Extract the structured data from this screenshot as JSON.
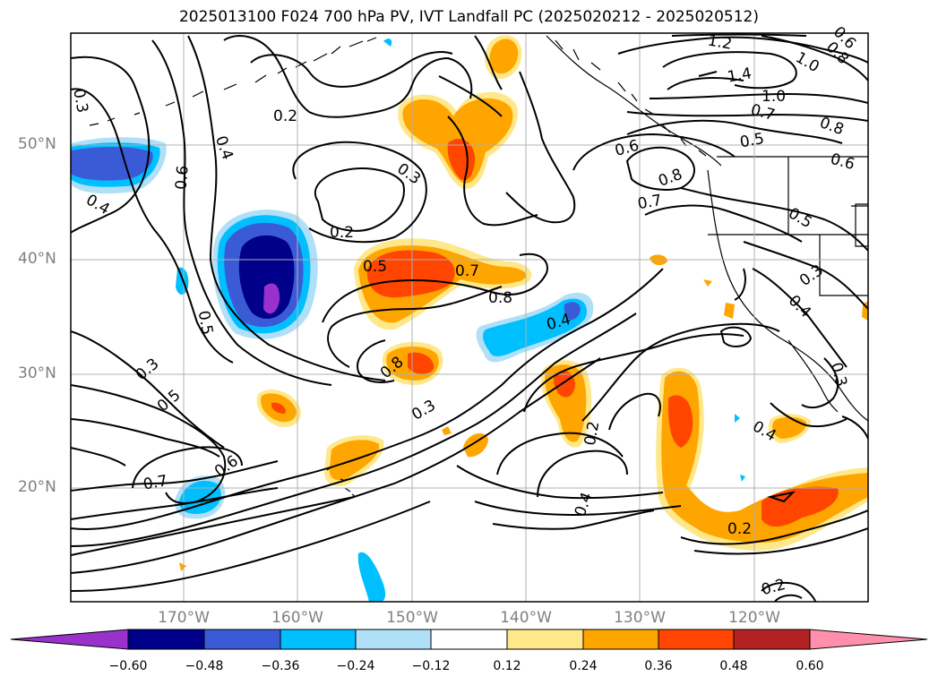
{
  "title": "2025013100 F024 700 hPa PV, IVT Landfall PC (2025020212 - 2025020512)",
  "lat_labels": [
    "50°N",
    "40°N",
    "30°N",
    "20°N"
  ],
  "lon_labels": [
    "170°W",
    "160°W",
    "150°W",
    "140°W",
    "130°W",
    "120°W"
  ],
  "contour_labels": [
    "0.3",
    "0.2",
    "0.4",
    "0.6",
    "0.2",
    "0.3",
    "0.5",
    "0.7",
    "0.8",
    "0.4",
    "0.6",
    "0.8",
    "0.7",
    "0.5",
    "1.0",
    "0.7",
    "0.8",
    "0.6",
    "1.2",
    "1.4",
    "1.0",
    "0.8",
    "0.6",
    "0.3",
    "0.4",
    "0.3",
    "0.5",
    "0.7",
    "0.6",
    "0.8",
    "0.3",
    "0.2",
    "0.4",
    "0.4",
    "0.2",
    "0.2",
    "0.3",
    "0.4"
  ],
  "colorbar": {
    "tick_labels": [
      "−0.60",
      "−0.48",
      "−0.36",
      "−0.24",
      "−0.12",
      "0.12",
      "0.24",
      "0.36",
      "0.48",
      "0.60"
    ],
    "colors": [
      "#9932cc",
      "#00008b",
      "#3b5bd6",
      "#00bfff",
      "#b0e0f8",
      "#ffffff",
      "#ffe88a",
      "#ffa500",
      "#ff4500",
      "#b22222",
      "#ff8fab"
    ]
  },
  "palette": {
    "purple": "#9932cc",
    "navy": "#00008b",
    "blue": "#3b5bd6",
    "cyan": "#00bfff",
    "lightblue": "#b0e0f8",
    "yellow": "#ffe88a",
    "orange": "#ffa500",
    "red": "#ff4500",
    "darkred": "#b22222",
    "pink": "#ff8fab"
  }
}
